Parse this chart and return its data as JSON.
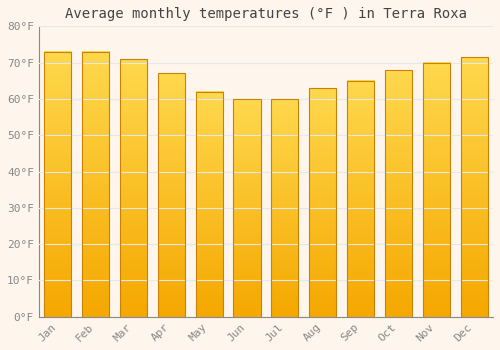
{
  "title": "Average monthly temperatures (°F ) in Terra Roxa",
  "months": [
    "Jan",
    "Feb",
    "Mar",
    "Apr",
    "May",
    "Jun",
    "Jul",
    "Aug",
    "Sep",
    "Oct",
    "Nov",
    "Dec"
  ],
  "values": [
    73,
    73,
    71,
    67,
    62,
    60,
    60,
    63,
    65,
    68,
    70,
    71.5
  ],
  "bar_color_bottom": "#F5A800",
  "bar_color_top": "#FFD84D",
  "bar_edge_color": "#C8820A",
  "ylim": [
    0,
    80
  ],
  "yticks": [
    0,
    10,
    20,
    30,
    40,
    50,
    60,
    70,
    80
  ],
  "ytick_labels": [
    "0°F",
    "10°F",
    "20°F",
    "30°F",
    "40°F",
    "50°F",
    "60°F",
    "70°F",
    "80°F"
  ],
  "background_color": "#FEF5EC",
  "grid_color": "#E8E8E8",
  "title_fontsize": 10,
  "tick_fontsize": 8,
  "bar_width": 0.72
}
